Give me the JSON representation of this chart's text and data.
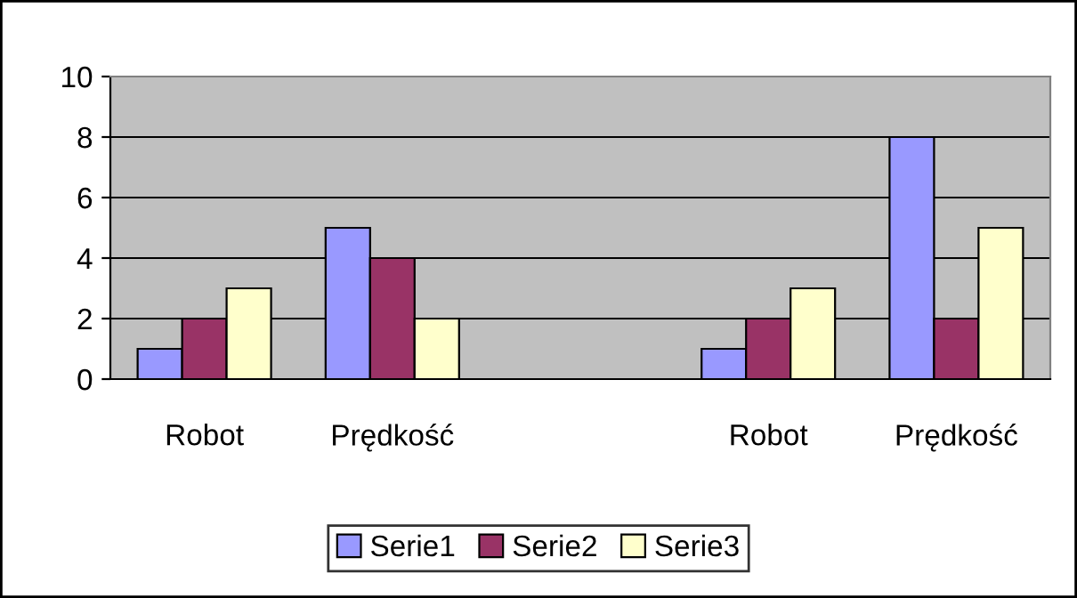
{
  "chart_data": {
    "type": "bar",
    "categories": [
      "Robot",
      "Prędkość",
      null,
      "Robot",
      "Prędkość"
    ],
    "series": [
      {
        "name": "Serie1",
        "color": "#9999ff",
        "values": [
          1,
          5,
          null,
          1,
          8
        ]
      },
      {
        "name": "Serie2",
        "color": "#993366",
        "values": [
          2,
          4,
          null,
          2,
          2
        ]
      },
      {
        "name": "Serie3",
        "color": "#ffffcc",
        "values": [
          3,
          2,
          null,
          3,
          5
        ]
      }
    ],
    "ylim": [
      0,
      10
    ],
    "yticks": [
      0,
      2,
      4,
      6,
      8,
      10
    ],
    "grid": "y",
    "legend": "bottom"
  }
}
